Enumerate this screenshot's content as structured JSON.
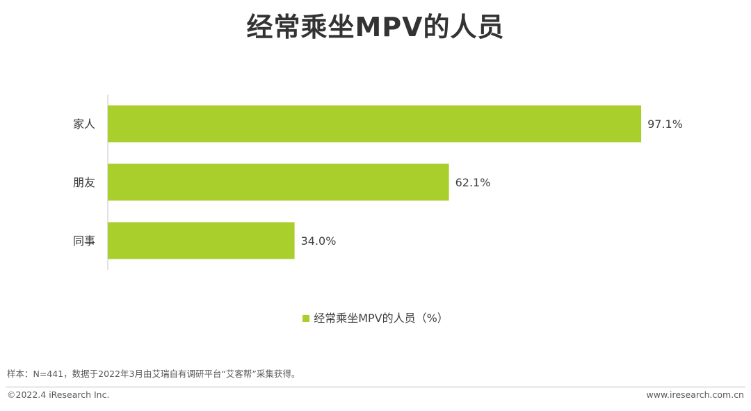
{
  "header": {
    "title": "经常乘坐MPV的人员"
  },
  "chart_data": {
    "type": "bar",
    "orientation": "horizontal",
    "title": "经常乘坐MPV的人员",
    "categories": [
      "家人",
      "朋友",
      "同事"
    ],
    "series": [
      {
        "name": "经常乘坐MPV的人员（%）",
        "values": [
          97.1,
          62.1,
          34.0
        ],
        "color": "#a8cf2c"
      }
    ],
    "value_labels": [
      "97.1%",
      "62.1%",
      "34.0%"
    ],
    "xlim": [
      0,
      100
    ],
    "grid": false,
    "legend_position": "bottom"
  },
  "legend": {
    "label": "经常乘坐MPV的人员（%）"
  },
  "footer": {
    "note": "样本：N=441，数据于2022年3月由艾瑞自有调研平台“艾客帮”采集获得。",
    "copyright": "©2022.4 iResearch Inc.",
    "website": "www.iresearch.com.cn"
  }
}
